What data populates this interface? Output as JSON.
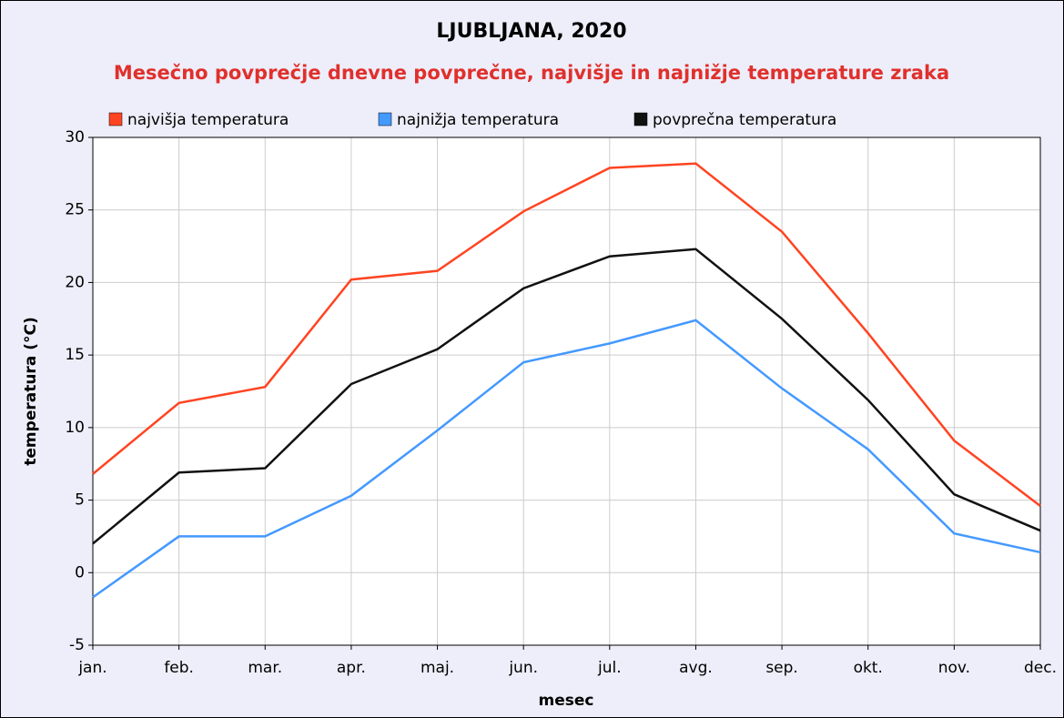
{
  "chart_data": {
    "type": "line",
    "title": "LJUBLJANA, 2020",
    "subtitle": "Mesečno povprečje dnevne povprečne, najvišje in najnižje temperature zraka",
    "xlabel": "mesec",
    "ylabel": "temperatura (°C)",
    "categories": [
      "jan.",
      "feb.",
      "mar.",
      "apr.",
      "maj.",
      "jun.",
      "jul.",
      "avg.",
      "sep.",
      "okt.",
      "nov.",
      "dec."
    ],
    "series": [
      {
        "name": "najvišja temperatura",
        "color": "#ff4422",
        "values": [
          6.8,
          11.7,
          12.8,
          20.2,
          20.8,
          24.9,
          27.9,
          28.2,
          23.5,
          16.5,
          9.1,
          4.6
        ]
      },
      {
        "name": "najnižja temperatura",
        "color": "#4499ff",
        "values": [
          -1.7,
          2.5,
          2.5,
          5.3,
          9.8,
          14.5,
          15.8,
          17.4,
          12.7,
          8.5,
          2.7,
          1.4
        ]
      },
      {
        "name": "povprečna temperatura",
        "color": "#111111",
        "values": [
          2.0,
          6.9,
          7.2,
          13.0,
          15.4,
          19.6,
          21.8,
          22.3,
          17.5,
          11.9,
          5.4,
          2.9
        ]
      }
    ],
    "ylim": [
      -5,
      30
    ],
    "yticks": [
      -5,
      0,
      5,
      10,
      15,
      20,
      25,
      30
    ],
    "grid": true
  }
}
